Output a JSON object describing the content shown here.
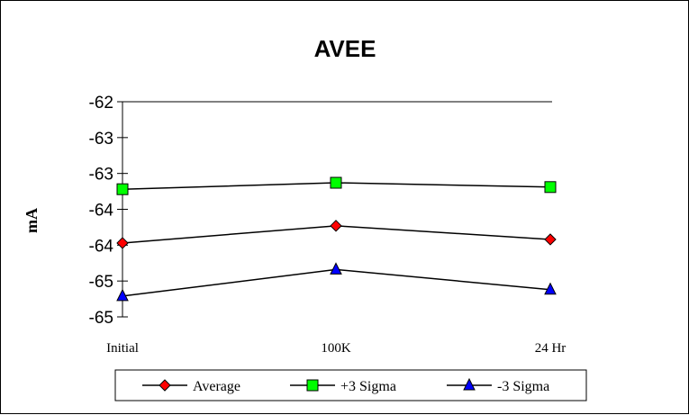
{
  "chart_data": {
    "type": "line",
    "title": "AVEE",
    "xlabel": "",
    "ylabel": "mA",
    "categories": [
      "Initial",
      "100K",
      "24 Hr"
    ],
    "y_tick_labels": [
      "-62",
      "-63",
      "-63",
      "-64",
      "-64",
      "-65",
      "-65"
    ],
    "ylim": [
      -65.25,
      -62.25
    ],
    "y_ticks": [
      -62.25,
      -62.75,
      -63.25,
      -63.75,
      -64.25,
      -64.75,
      -65.25
    ],
    "grid": false,
    "legend_position": "bottom",
    "series": [
      {
        "name": "Average",
        "color": "#ff0000",
        "marker": "diamond",
        "values": [
          -64.22,
          -63.98,
          -64.17
        ]
      },
      {
        "name": "+3 Sigma",
        "color": "#00ff00",
        "marker": "square",
        "values": [
          -63.47,
          -63.38,
          -63.44
        ]
      },
      {
        "name": "-3 Sigma",
        "color": "#0000ff",
        "marker": "triangle",
        "values": [
          -64.96,
          -64.59,
          -64.87
        ]
      }
    ]
  }
}
